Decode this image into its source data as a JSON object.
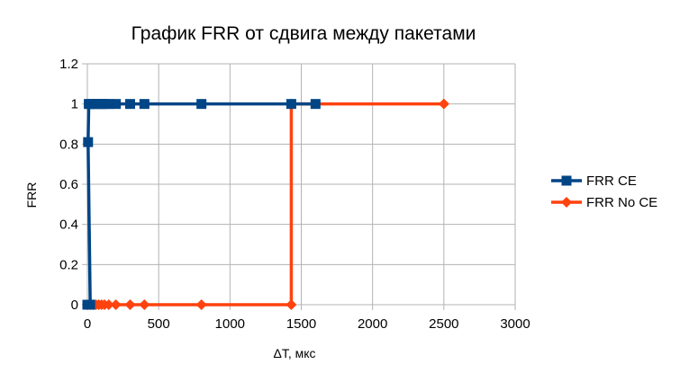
{
  "chart_data": {
    "type": "scatter",
    "title": "График FRR от сдвига между пакетами",
    "xlabel": "ΔT, мкс",
    "ylabel": "FRR",
    "xlim": [
      0,
      3000
    ],
    "ylim": [
      0,
      1.2
    ],
    "xticks": [
      "0",
      "500",
      "1000",
      "1500",
      "2000",
      "2500",
      "3000"
    ],
    "yticks": [
      "0",
      "0.2",
      "0.4",
      "0.6",
      "0.8",
      "1",
      "1.2"
    ],
    "grid": true,
    "legend_position": "right",
    "series": [
      {
        "name": "FRR CE",
        "color": "#004586",
        "marker": "square",
        "points": [
          [
            0,
            0
          ],
          [
            5,
            0
          ],
          [
            10,
            0
          ],
          [
            15,
            0
          ],
          [
            20,
            0
          ],
          [
            5,
            0.81
          ],
          [
            10,
            1
          ],
          [
            20,
            1
          ],
          [
            40,
            1
          ],
          [
            60,
            1
          ],
          [
            80,
            1
          ],
          [
            100,
            1
          ],
          [
            120,
            1
          ],
          [
            150,
            1
          ],
          [
            200,
            1
          ],
          [
            300,
            1
          ],
          [
            400,
            1
          ],
          [
            800,
            1
          ],
          [
            1430,
            1
          ],
          [
            1600,
            1
          ]
        ]
      },
      {
        "name": "FRR No CE",
        "color": "#ff420e",
        "marker": "diamond",
        "points": [
          [
            0,
            0
          ],
          [
            20,
            0
          ],
          [
            40,
            0
          ],
          [
            60,
            0
          ],
          [
            80,
            0
          ],
          [
            100,
            0
          ],
          [
            120,
            0
          ],
          [
            150,
            0
          ],
          [
            200,
            0
          ],
          [
            300,
            0
          ],
          [
            400,
            0
          ],
          [
            800,
            0
          ],
          [
            1430,
            0
          ],
          [
            1430,
            1
          ],
          [
            2500,
            1
          ]
        ]
      }
    ]
  }
}
